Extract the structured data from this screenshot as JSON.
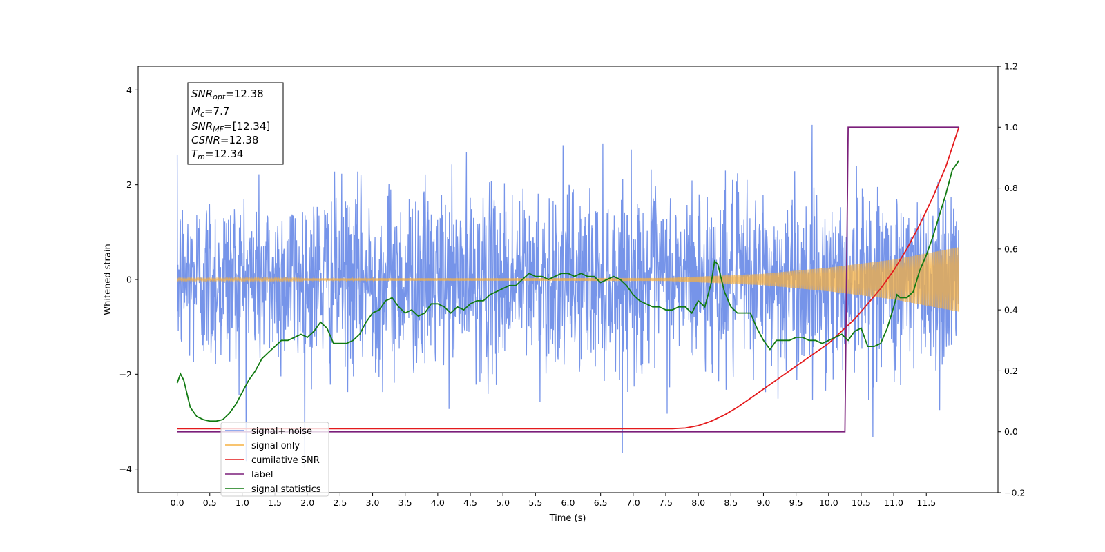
{
  "chart_data": {
    "type": "line",
    "xlabel": "Time (s)",
    "ylabel": "Whitened strain",
    "xlim": [
      -0.6,
      12.6
    ],
    "ylim": [
      -4.5,
      4.5
    ],
    "y2lim": [
      -0.2,
      1.2
    ],
    "xticks": [
      "0.0",
      "0.5",
      "1.0",
      "1.5",
      "2.0",
      "2.5",
      "3.0",
      "3.5",
      "4.0",
      "4.5",
      "5.0",
      "5.5",
      "6.0",
      "6.5",
      "7.0",
      "7.5",
      "8.0",
      "8.5",
      "9.0",
      "9.5",
      "10.0",
      "10.5",
      "11.0",
      "11.5"
    ],
    "yticks": [
      "4",
      "2",
      "0",
      "−2",
      "−4"
    ],
    "y2ticks": [
      "1.2",
      "1.0",
      "0.8",
      "0.6",
      "0.4",
      "0.2",
      "0.0",
      "−0.2"
    ],
    "grid": false,
    "legend_position": "bottom-left",
    "annotation": {
      "lines": [
        {
          "name": "SNR",
          "sub": "opt",
          "value": "=12.38"
        },
        {
          "name": "M",
          "sub": "c",
          "value": "=7.7"
        },
        {
          "name": "SNR",
          "sub": "MF",
          "value": "=[12.34]"
        },
        {
          "name": "CSNR",
          "sub": "",
          "value": "=12.38"
        },
        {
          "name": "T",
          "sub": "m",
          "value": "=12.34"
        }
      ]
    },
    "series": [
      {
        "name": "signal+ noise",
        "color": "#6f8ee8",
        "axis": "left",
        "kind": "noise",
        "amplitude_std": 0.95,
        "peak_abs": 4.08,
        "x_range": [
          0.0,
          12.0
        ]
      },
      {
        "name": "signal only",
        "color": "#f5b041",
        "axis": "left",
        "kind": "chirp",
        "x_range": [
          0.0,
          12.0
        ],
        "envelope": {
          "x": [
            0.0,
            7.5,
            8.0,
            9.0,
            10.0,
            11.0,
            12.0
          ],
          "y": [
            0.02,
            0.03,
            0.06,
            0.12,
            0.25,
            0.42,
            0.68
          ]
        }
      },
      {
        "name": "cumilative SNR",
        "color": "#e41a1c",
        "axis": "right",
        "x": [
          0.0,
          7.6,
          7.8,
          8.0,
          8.2,
          8.4,
          8.6,
          8.8,
          9.0,
          9.2,
          9.4,
          9.6,
          9.8,
          10.0,
          10.2,
          10.4,
          10.6,
          10.8,
          11.0,
          11.2,
          11.4,
          11.6,
          11.8,
          12.0
        ],
        "y": [
          0.01,
          0.01,
          0.012,
          0.02,
          0.035,
          0.055,
          0.08,
          0.11,
          0.14,
          0.17,
          0.2,
          0.23,
          0.26,
          0.29,
          0.33,
          0.37,
          0.42,
          0.47,
          0.53,
          0.6,
          0.68,
          0.77,
          0.87,
          1.0
        ]
      },
      {
        "name": "label",
        "color": "#7b1f7a",
        "axis": "right",
        "x": [
          0.0,
          10.25,
          10.3,
          12.0
        ],
        "y": [
          0.0,
          0.0,
          1.0,
          1.0
        ]
      },
      {
        "name": "signal statistics",
        "color": "#117a11",
        "axis": "right",
        "x": [
          0.0,
          0.05,
          0.1,
          0.2,
          0.3,
          0.4,
          0.5,
          0.6,
          0.7,
          0.8,
          0.9,
          1.0,
          1.1,
          1.2,
          1.3,
          1.4,
          1.5,
          1.6,
          1.7,
          1.8,
          1.9,
          2.0,
          2.1,
          2.2,
          2.3,
          2.4,
          2.5,
          2.6,
          2.7,
          2.8,
          2.9,
          3.0,
          3.1,
          3.2,
          3.3,
          3.4,
          3.5,
          3.6,
          3.7,
          3.8,
          3.9,
          4.0,
          4.1,
          4.2,
          4.3,
          4.4,
          4.5,
          4.6,
          4.7,
          4.8,
          4.9,
          5.0,
          5.1,
          5.2,
          5.3,
          5.4,
          5.5,
          5.6,
          5.7,
          5.8,
          5.9,
          6.0,
          6.1,
          6.2,
          6.3,
          6.4,
          6.5,
          6.6,
          6.7,
          6.8,
          6.9,
          7.0,
          7.1,
          7.2,
          7.3,
          7.4,
          7.5,
          7.6,
          7.7,
          7.8,
          7.9,
          8.0,
          8.1,
          8.2,
          8.25,
          8.3,
          8.4,
          8.5,
          8.6,
          8.7,
          8.8,
          8.9,
          9.0,
          9.1,
          9.2,
          9.3,
          9.4,
          9.5,
          9.6,
          9.7,
          9.8,
          9.9,
          10.0,
          10.1,
          10.2,
          10.3,
          10.4,
          10.5,
          10.6,
          10.7,
          10.8,
          10.9,
          11.0,
          11.05,
          11.1,
          11.2,
          11.3,
          11.4,
          11.5,
          11.6,
          11.7,
          11.8,
          11.9,
          12.0
        ],
        "y": [
          0.16,
          0.19,
          0.17,
          0.08,
          0.05,
          0.04,
          0.035,
          0.035,
          0.04,
          0.06,
          0.09,
          0.13,
          0.17,
          0.2,
          0.24,
          0.26,
          0.28,
          0.3,
          0.3,
          0.31,
          0.32,
          0.31,
          0.33,
          0.36,
          0.34,
          0.29,
          0.29,
          0.29,
          0.3,
          0.32,
          0.36,
          0.39,
          0.4,
          0.43,
          0.44,
          0.41,
          0.39,
          0.4,
          0.38,
          0.39,
          0.42,
          0.42,
          0.41,
          0.39,
          0.41,
          0.4,
          0.42,
          0.43,
          0.43,
          0.45,
          0.46,
          0.47,
          0.48,
          0.48,
          0.5,
          0.52,
          0.51,
          0.51,
          0.5,
          0.51,
          0.52,
          0.52,
          0.51,
          0.52,
          0.51,
          0.51,
          0.49,
          0.5,
          0.51,
          0.5,
          0.48,
          0.45,
          0.43,
          0.42,
          0.41,
          0.41,
          0.4,
          0.4,
          0.41,
          0.41,
          0.39,
          0.43,
          0.41,
          0.49,
          0.56,
          0.55,
          0.46,
          0.41,
          0.39,
          0.39,
          0.39,
          0.34,
          0.3,
          0.27,
          0.3,
          0.3,
          0.3,
          0.31,
          0.31,
          0.3,
          0.3,
          0.29,
          0.3,
          0.31,
          0.32,
          0.3,
          0.33,
          0.34,
          0.28,
          0.28,
          0.29,
          0.34,
          0.41,
          0.45,
          0.44,
          0.44,
          0.46,
          0.53,
          0.58,
          0.64,
          0.71,
          0.78,
          0.86,
          0.89
        ]
      }
    ]
  }
}
